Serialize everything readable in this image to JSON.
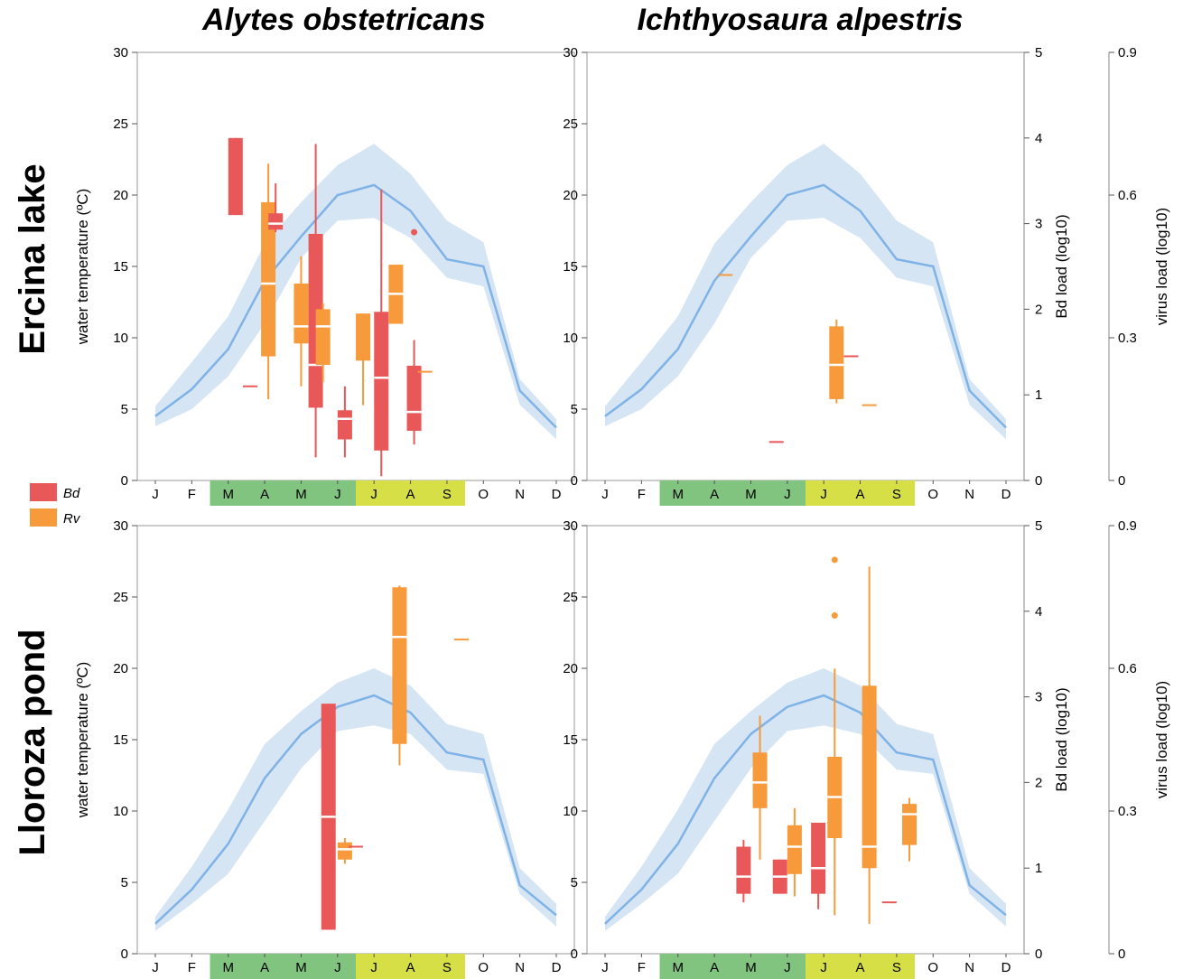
{
  "column_titles": [
    "Alytes obstetricans",
    "Ichthyosaura alpestris"
  ],
  "row_titles": [
    "Ercina lake",
    "Lloroza pond"
  ],
  "axis_labels": {
    "temp": "water temperature (ºC)",
    "bd": "Bd load (log10)",
    "virus": "virus load (log10)"
  },
  "colors": {
    "Bd": "#e85858",
    "Rv": "#f79a3b",
    "line": "#7fb3e6",
    "band": "#d6e5f4",
    "spring": "#80c47f",
    "summer": "#d6df45",
    "frame": "#999999"
  },
  "legend": [
    {
      "key": "Bd",
      "label": "Bd"
    },
    {
      "key": "Rv",
      "label": "Rv"
    }
  ],
  "months": [
    "J",
    "F",
    "M",
    "A",
    "M",
    "J",
    "J",
    "A",
    "S",
    "O",
    "N",
    "D"
  ],
  "season_bands": [
    {
      "season": "spring",
      "from": 3,
      "to": 6
    },
    {
      "season": "summer",
      "from": 7,
      "to": 9
    }
  ],
  "chart_data": [
    {
      "type": "line+boxplot",
      "panel": "Ercina lake / Alytes obstetricans",
      "row": 0,
      "col": 0,
      "ylim_temp": [
        0,
        30
      ],
      "ylim_bd": [
        0,
        5
      ],
      "ylim_virus": [
        0,
        0.9
      ],
      "temp_mean": [
        4.5,
        6.4,
        9.2,
        14,
        17.1,
        20,
        20.7,
        18.9,
        15.5,
        15,
        6.3,
        3.7
      ],
      "temp_low": [
        3.8,
        5.0,
        7.3,
        11,
        15.6,
        18.2,
        18.4,
        17,
        14.2,
        13.6,
        5.3,
        2.9
      ],
      "temp_high": [
        5.2,
        8.3,
        11.5,
        16.6,
        19.5,
        22.1,
        23.6,
        21.5,
        18.2,
        16.7,
        7.1,
        4.3
      ],
      "temp_ticks": [
        0,
        5,
        10,
        15,
        20,
        25,
        30
      ],
      "bd_ticks": [
        0,
        1,
        2,
        3,
        4,
        5
      ],
      "virus_ticks": [
        0,
        0.3,
        0.6,
        0.9
      ],
      "boxes": [
        {
          "pathogen": "Bd",
          "x": 3.2,
          "min": 3.1,
          "q1": 3.1,
          "median": 3.1,
          "q3": 4.0,
          "max": 4.0
        },
        {
          "pathogen": "Bd",
          "x": 3.6,
          "min": 1.1,
          "q1": 1.1,
          "median": 1.1,
          "q3": 1.1,
          "max": 1.1
        },
        {
          "pathogen": "Rv",
          "x": 4.1,
          "min": 0.95,
          "q1": 1.45,
          "median": 2.3,
          "q3": 3.25,
          "max": 3.7
        },
        {
          "pathogen": "Bd",
          "x": 4.3,
          "min": 2.9,
          "q1": 2.93,
          "median": 3.0,
          "q3": 3.12,
          "max": 3.47
        },
        {
          "pathogen": "Rv",
          "x": 5.0,
          "min": 1.1,
          "q1": 1.6,
          "median": 1.8,
          "q3": 2.3,
          "max": 2.62
        },
        {
          "pathogen": "Bd",
          "x": 5.4,
          "min": 0.27,
          "q1": 0.85,
          "median": 1.35,
          "q3": 2.88,
          "max": 3.93
        },
        {
          "pathogen": "Rv",
          "x": 5.6,
          "min": 1.15,
          "q1": 1.35,
          "median": 1.8,
          "q3": 2.0,
          "max": 2.07
        },
        {
          "pathogen": "Bd",
          "x": 6.2,
          "min": 0.27,
          "q1": 0.48,
          "median": 0.72,
          "q3": 0.82,
          "max": 1.1
        },
        {
          "pathogen": "Rv",
          "x": 6.7,
          "min": 0.88,
          "q1": 1.4,
          "median": 1.4,
          "q3": 1.95,
          "max": 1.95
        },
        {
          "pathogen": "Bd",
          "x": 7.2,
          "min": 0.05,
          "q1": 0.35,
          "median": 1.2,
          "q3": 1.97,
          "max": 3.4
        },
        {
          "pathogen": "Rv",
          "x": 7.6,
          "min": 1.83,
          "q1": 1.83,
          "median": 2.18,
          "q3": 2.52,
          "max": 2.52
        },
        {
          "pathogen": "Bd",
          "x": 8.1,
          "min": 0.42,
          "q1": 0.58,
          "median": 0.8,
          "q3": 1.34,
          "max": 1.64,
          "outliers": [
            2.9
          ]
        },
        {
          "pathogen": "Rv",
          "x": 8.4,
          "min": 1.27,
          "q1": 1.27,
          "median": 1.27,
          "q3": 1.27,
          "max": 1.27
        }
      ]
    },
    {
      "type": "line+boxplot",
      "panel": "Ercina lake / Ichthyosaura alpestris",
      "row": 0,
      "col": 1,
      "ylim_temp": [
        0,
        30
      ],
      "ylim_bd": [
        0,
        5
      ],
      "ylim_virus": [
        0,
        0.9
      ],
      "temp_mean": [
        4.5,
        6.4,
        9.2,
        14,
        17.1,
        20,
        20.7,
        18.9,
        15.5,
        15,
        6.3,
        3.7
      ],
      "temp_low": [
        3.8,
        5.0,
        7.3,
        11,
        15.6,
        18.2,
        18.4,
        17,
        14.2,
        13.6,
        5.3,
        2.9
      ],
      "temp_high": [
        5.2,
        8.3,
        11.5,
        16.6,
        19.5,
        22.1,
        23.6,
        21.5,
        18.2,
        16.7,
        7.1,
        4.3
      ],
      "temp_ticks": [
        0,
        5,
        10,
        15,
        20,
        25,
        30
      ],
      "bd_ticks": [
        0,
        1,
        2,
        3,
        4,
        5
      ],
      "virus_ticks": [
        0,
        0.3,
        0.6,
        0.9
      ],
      "boxes": [
        {
          "pathogen": "Rv",
          "x": 4.3,
          "min": 2.4,
          "q1": 2.4,
          "median": 2.4,
          "q3": 2.4,
          "max": 2.4
        },
        {
          "pathogen": "Bd",
          "x": 5.7,
          "min": 0.45,
          "q1": 0.45,
          "median": 0.45,
          "q3": 0.45,
          "max": 0.45
        },
        {
          "pathogen": "Rv",
          "x": 7.35,
          "min": 0.9,
          "q1": 0.95,
          "median": 1.35,
          "q3": 1.8,
          "max": 1.88
        },
        {
          "pathogen": "Bd",
          "x": 7.75,
          "min": 1.45,
          "q1": 1.45,
          "median": 1.45,
          "q3": 1.45,
          "max": 1.45
        },
        {
          "pathogen": "Rv",
          "x": 8.25,
          "min": 0.88,
          "q1": 0.88,
          "median": 0.88,
          "q3": 0.88,
          "max": 0.88
        }
      ]
    },
    {
      "type": "line+boxplot",
      "panel": "Lloroza pond / Alytes obstetricans",
      "row": 1,
      "col": 0,
      "ylim_temp": [
        0,
        30
      ],
      "ylim_bd": [
        0,
        5
      ],
      "ylim_virus": [
        0,
        0.9
      ],
      "temp_mean": [
        2.1,
        4.5,
        7.7,
        12.3,
        15.4,
        17.3,
        18.1,
        16.9,
        14.1,
        13.6,
        4.8,
        2.7
      ],
      "temp_low": [
        1.6,
        3.5,
        5.6,
        9.3,
        13.0,
        15.6,
        16.0,
        15.4,
        12.9,
        12.6,
        4.2,
        1.9
      ],
      "temp_high": [
        2.6,
        6.1,
        10.1,
        14.7,
        17.0,
        19.0,
        20.0,
        18.8,
        16.1,
        15.4,
        6.0,
        3.5
      ],
      "temp_ticks": [
        0,
        5,
        10,
        15,
        20,
        25,
        30
      ],
      "bd_ticks": [
        0,
        1,
        2,
        3,
        4,
        5
      ],
      "virus_ticks": [
        0,
        0.3,
        0.6,
        0.9
      ],
      "boxes": [
        {
          "pathogen": "Bd",
          "x": 5.75,
          "min": 0.28,
          "q1": 0.28,
          "median": 1.6,
          "q3": 2.92,
          "max": 2.92
        },
        {
          "pathogen": "Rv",
          "x": 6.2,
          "min": 1.05,
          "q1": 1.1,
          "median": 1.22,
          "q3": 1.3,
          "max": 1.35
        },
        {
          "pathogen": "Bd",
          "x": 6.5,
          "min": 1.25,
          "q1": 1.25,
          "median": 1.25,
          "q3": 1.25,
          "max": 1.25
        },
        {
          "pathogen": "Rv",
          "x": 7.7,
          "min": 2.2,
          "q1": 2.45,
          "median": 3.7,
          "q3": 4.28,
          "max": 4.3
        },
        {
          "pathogen": "Rv",
          "x": 9.4,
          "min": 3.67,
          "q1": 3.67,
          "median": 3.67,
          "q3": 3.67,
          "max": 3.67
        }
      ]
    },
    {
      "type": "line+boxplot",
      "panel": "Lloroza pond / Ichthyosaura alpestris",
      "row": 1,
      "col": 1,
      "ylim_temp": [
        0,
        30
      ],
      "ylim_bd": [
        0,
        5
      ],
      "ylim_virus": [
        0,
        0.9
      ],
      "temp_mean": [
        2.1,
        4.5,
        7.7,
        12.3,
        15.4,
        17.3,
        18.1,
        16.9,
        14.1,
        13.6,
        4.8,
        2.7
      ],
      "temp_low": [
        1.6,
        3.5,
        5.6,
        9.3,
        13.0,
        15.6,
        16.0,
        15.4,
        12.9,
        12.6,
        4.2,
        1.9
      ],
      "temp_high": [
        2.6,
        6.1,
        10.1,
        14.7,
        17.0,
        19.0,
        20.0,
        18.8,
        16.1,
        15.4,
        6.0,
        3.5
      ],
      "temp_ticks": [
        0,
        5,
        10,
        15,
        20,
        25,
        30
      ],
      "bd_ticks": [
        0,
        1,
        2,
        3,
        4,
        5
      ],
      "virus_ticks": [
        0,
        0.3,
        0.6,
        0.9
      ],
      "boxes": [
        {
          "pathogen": "Bd",
          "x": 4.8,
          "min": 0.6,
          "q1": 0.7,
          "median": 0.9,
          "q3": 1.25,
          "max": 1.33
        },
        {
          "pathogen": "Rv",
          "x": 5.25,
          "min": 1.1,
          "q1": 1.7,
          "median": 2.0,
          "q3": 2.35,
          "max": 2.78
        },
        {
          "pathogen": "Bd",
          "x": 5.8,
          "min": 0.7,
          "q1": 0.7,
          "median": 0.9,
          "q3": 1.1,
          "max": 1.1
        },
        {
          "pathogen": "Rv",
          "x": 6.2,
          "min": 0.67,
          "q1": 0.93,
          "median": 1.25,
          "q3": 1.5,
          "max": 1.7
        },
        {
          "pathogen": "Bd",
          "x": 6.85,
          "min": 0.52,
          "q1": 0.7,
          "median": 1.0,
          "q3": 1.53,
          "max": 1.53
        },
        {
          "pathogen": "Rv",
          "x": 7.3,
          "min": 0.45,
          "q1": 1.35,
          "median": 1.83,
          "q3": 2.3,
          "max": 3.33,
          "outliers": [
            3.95,
            4.6
          ]
        },
        {
          "pathogen": "Rv",
          "x": 8.25,
          "min": 0.35,
          "q1": 1.0,
          "median": 1.25,
          "q3": 3.13,
          "max": 4.52
        },
        {
          "pathogen": "Bd",
          "x": 8.8,
          "min": 0.6,
          "q1": 0.6,
          "median": 0.6,
          "q3": 0.6,
          "max": 0.6
        },
        {
          "pathogen": "Rv",
          "x": 9.35,
          "min": 1.08,
          "q1": 1.27,
          "median": 1.63,
          "q3": 1.75,
          "max": 1.82
        }
      ]
    }
  ]
}
